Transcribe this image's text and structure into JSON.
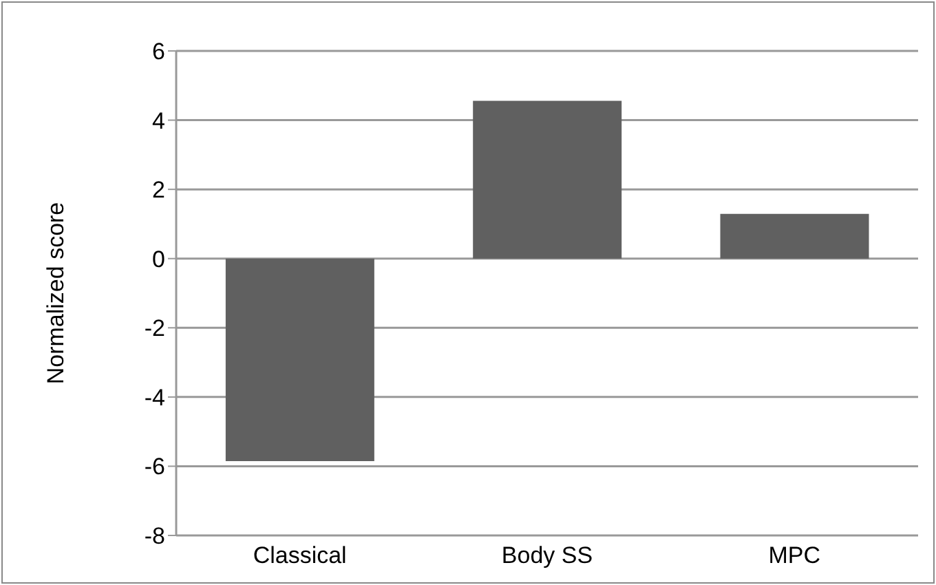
{
  "chart_data": {
    "type": "bar",
    "ylabel": "Normalized score",
    "categories": [
      "Classical",
      "Body SS",
      "MPC"
    ],
    "values": [
      -5.85,
      4.56,
      1.29
    ],
    "color": "#606060",
    "ylim": [
      -8,
      6
    ],
    "yticks": [
      -8,
      -6,
      -4,
      -2,
      0,
      2,
      4,
      6
    ],
    "grid": "y",
    "legend": false
  }
}
